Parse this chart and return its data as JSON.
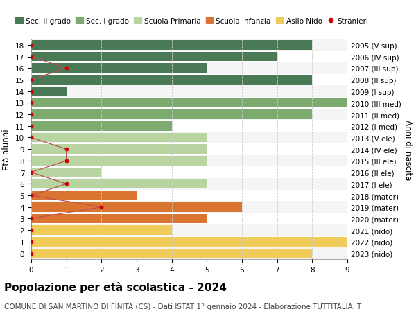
{
  "ages": [
    18,
    17,
    16,
    15,
    14,
    13,
    12,
    11,
    10,
    9,
    8,
    7,
    6,
    5,
    4,
    3,
    2,
    1,
    0
  ],
  "years": [
    "2005 (V sup)",
    "2006 (IV sup)",
    "2007 (III sup)",
    "2008 (II sup)",
    "2009 (I sup)",
    "2010 (III med)",
    "2011 (II med)",
    "2012 (I med)",
    "2013 (V ele)",
    "2014 (IV ele)",
    "2015 (III ele)",
    "2016 (II ele)",
    "2017 (I ele)",
    "2018 (mater)",
    "2019 (mater)",
    "2020 (mater)",
    "2021 (nido)",
    "2022 (nido)",
    "2023 (nido)"
  ],
  "bar_values": [
    8,
    7,
    5,
    8,
    1,
    9,
    8,
    4,
    5,
    5,
    5,
    2,
    5,
    3,
    6,
    5,
    4,
    9,
    8
  ],
  "bar_colors": [
    "#4a7a55",
    "#4a7a55",
    "#4a7a55",
    "#4a7a55",
    "#4a7a55",
    "#7daa6e",
    "#7daa6e",
    "#7daa6e",
    "#b8d4a0",
    "#b8d4a0",
    "#b8d4a0",
    "#b8d4a0",
    "#b8d4a0",
    "#d97530",
    "#d97530",
    "#d97530",
    "#f0cc5a",
    "#f0cc5a",
    "#f0cc5a"
  ],
  "stranieri_values": [
    0,
    0,
    1,
    0,
    0,
    0,
    0,
    0,
    0,
    1,
    1,
    0,
    1,
    0,
    2,
    0,
    0,
    0,
    0
  ],
  "stranieri_color": "#cc0000",
  "stranieri_line_color": "#c05050",
  "ylabel_left": "Età alunni",
  "ylabel_right": "Anni di nascita",
  "title": "Popolazione per età scolastica - 2024",
  "subtitle": "COMUNE DI SAN MARTINO DI FINITA (CS) - Dati ISTAT 1° gennaio 2024 - Elaborazione TUTTITALIA.IT",
  "xlim": [
    0,
    9
  ],
  "legend_labels": [
    "Sec. II grado",
    "Sec. I grado",
    "Scuola Primaria",
    "Scuola Infanzia",
    "Asilo Nido",
    "Stranieri"
  ],
  "legend_colors": [
    "#4a7a55",
    "#7daa6e",
    "#b8d4a0",
    "#d97530",
    "#f0cc5a",
    "#cc0000"
  ],
  "bg_color": "#ffffff",
  "row_bg_even": "#f5f5f5",
  "row_bg_odd": "#ffffff",
  "grid_color": "#cccccc",
  "bar_height": 0.82,
  "title_fontsize": 11,
  "subtitle_fontsize": 7.5,
  "legend_fontsize": 7.5,
  "axis_fontsize": 7.5,
  "label_fontsize": 8.5
}
